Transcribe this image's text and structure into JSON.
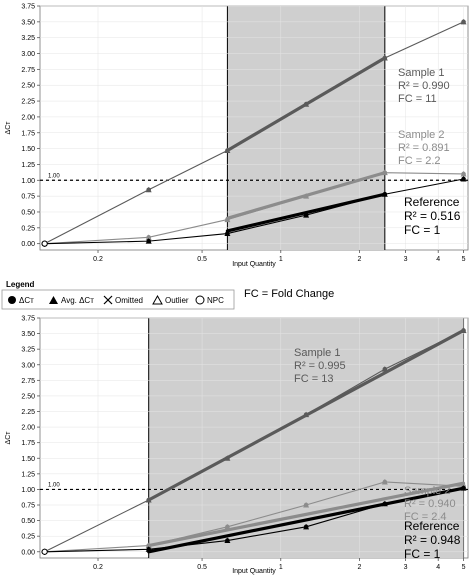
{
  "legend": {
    "title": "Legend",
    "items": [
      {
        "label": "ΔCт",
        "icon": "filled-circle-icon"
      },
      {
        "label": "Avg. ΔCт",
        "icon": "filled-triangle-icon"
      },
      {
        "label": "Omitted",
        "icon": "x-mark-icon"
      },
      {
        "label": "Outlier",
        "icon": "open-triangle-icon"
      },
      {
        "label": "NPC",
        "icon": "open-circle-icon"
      }
    ],
    "note": "FC = Fold Change"
  },
  "colors": {
    "sample1": "#5a5a5a",
    "sample2": "#8c8c8c",
    "reference": "#000000",
    "shade": "#cfcfcf"
  },
  "chart_data": [
    {
      "type": "scatter",
      "xscale": "log",
      "xlim": [
        0.12,
        5.2
      ],
      "ylim": [
        -0.1,
        3.75
      ],
      "xlabel": "Input Quantity",
      "ylabel": "ΔCт",
      "xticks": [
        0.2,
        0.5,
        1,
        2,
        3,
        4,
        5
      ],
      "yticks": [
        0.0,
        0.25,
        0.5,
        0.75,
        1.0,
        1.25,
        1.5,
        1.75,
        2.0,
        2.25,
        2.5,
        2.75,
        3.0,
        3.25,
        3.5,
        3.75
      ],
      "ytick_labels": [
        "0.00",
        "0.25",
        "0.50",
        "0.75",
        "1.00",
        "1.25",
        "1.50",
        "1.75",
        "2.00",
        "2.25",
        "2.50",
        "2.75",
        "3.00",
        "3.25",
        "3.50",
        "3.75"
      ],
      "reference_line": {
        "y": 1.0,
        "label": "1.00"
      },
      "shaded_range": [
        0.625,
        2.5
      ],
      "series": [
        {
          "name": "Sample 1",
          "x": [
            0.125,
            0.3125,
            0.625,
            1.25,
            2.5,
            5
          ],
          "y": [
            0.0,
            0.85,
            1.47,
            2.2,
            2.93,
            3.5
          ],
          "fit": [
            [
              0.625,
              1.47
            ],
            [
              2.5,
              2.93
            ]
          ],
          "annotation": [
            "Sample 1",
            "R² = 0.990",
            "FC = 11"
          ]
        },
        {
          "name": "Sample 2",
          "x": [
            0.125,
            0.3125,
            0.625,
            1.25,
            2.5,
            5
          ],
          "y": [
            0.0,
            0.1,
            0.38,
            0.75,
            1.12,
            1.1
          ],
          "fit": [
            [
              0.625,
              0.4
            ],
            [
              2.5,
              1.12
            ]
          ],
          "annotation": [
            "Sample 2",
            "R² = 0.891",
            "FC = 2.2"
          ]
        },
        {
          "name": "Reference",
          "x": [
            0.125,
            0.3125,
            0.625,
            1.25,
            2.5,
            5
          ],
          "y": [
            0.0,
            0.04,
            0.16,
            0.45,
            0.78,
            1.02
          ],
          "fit": [
            [
              0.625,
              0.2
            ],
            [
              2.5,
              0.78
            ]
          ],
          "annotation": [
            "Reference",
            "R² = 0.516",
            "FC = 1"
          ]
        }
      ]
    },
    {
      "type": "scatter",
      "xscale": "log",
      "xlim": [
        0.12,
        5.2
      ],
      "ylim": [
        -0.1,
        3.75
      ],
      "xlabel": "Input Quantity",
      "ylabel": "ΔCт",
      "xticks": [
        0.2,
        0.5,
        1,
        2,
        3,
        4,
        5
      ],
      "yticks": [
        0.0,
        0.25,
        0.5,
        0.75,
        1.0,
        1.25,
        1.5,
        1.75,
        2.0,
        2.25,
        2.5,
        2.75,
        3.0,
        3.25,
        3.5,
        3.75
      ],
      "ytick_labels": [
        "0.00",
        "0.25",
        "0.50",
        "0.75",
        "1.00",
        "1.25",
        "1.50",
        "1.75",
        "2.00",
        "2.25",
        "2.50",
        "2.75",
        "3.00",
        "3.25",
        "3.50",
        "3.75"
      ],
      "reference_line": {
        "y": 1.0,
        "label": "1.00"
      },
      "shaded_range": [
        0.3125,
        5
      ],
      "series": [
        {
          "name": "Sample 1",
          "x": [
            0.125,
            0.3125,
            0.625,
            1.25,
            2.5,
            5
          ],
          "y": [
            0.0,
            0.83,
            1.5,
            2.2,
            2.93,
            3.55
          ],
          "fit": [
            [
              0.3125,
              0.83
            ],
            [
              5,
              3.55
            ]
          ],
          "annotation": [
            "Sample 1",
            "R² = 0.995",
            "FC = 13"
          ]
        },
        {
          "name": "Sample 2",
          "x": [
            0.125,
            0.3125,
            0.625,
            1.25,
            2.5,
            5
          ],
          "y": [
            0.0,
            0.1,
            0.4,
            0.75,
            1.12,
            1.05
          ],
          "fit": [
            [
              0.3125,
              0.1
            ],
            [
              5,
              1.1
            ]
          ],
          "annotation": [
            "Sample 2",
            "R² = 0.940",
            "FC = 2.4"
          ]
        },
        {
          "name": "Reference",
          "x": [
            0.125,
            0.3125,
            0.625,
            1.25,
            2.5,
            5
          ],
          "y": [
            0.0,
            0.04,
            0.18,
            0.4,
            0.77,
            1.02
          ],
          "fit": [
            [
              0.3125,
              0.0
            ],
            [
              5,
              1.02
            ]
          ],
          "annotation": [
            "Reference",
            "R² = 0.948",
            "FC = 1"
          ]
        }
      ]
    }
  ]
}
